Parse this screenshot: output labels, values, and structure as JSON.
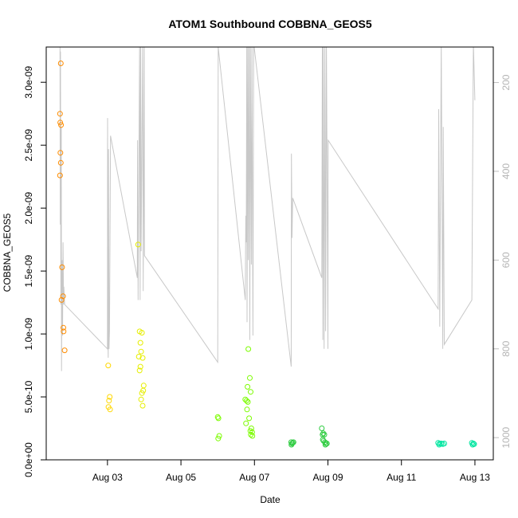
{
  "chart_data": {
    "type": "scatter",
    "title": "ATOM1 Southbound COBBNA_GEOS5",
    "xlabel": "Date",
    "ylabel": "COBBNA_GEOS5",
    "xlim": [
      "2016-08-01T08:00",
      "2016-08-13T12:00"
    ],
    "ylim": [
      0,
      3.28e-09
    ],
    "x_ticks": [
      {
        "x": "2016-08-03T00:00",
        "label": "Aug 03"
      },
      {
        "x": "2016-08-05T00:00",
        "label": "Aug 05"
      },
      {
        "x": "2016-08-07T00:00",
        "label": "Aug 07"
      },
      {
        "x": "2016-08-09T00:00",
        "label": "Aug 09"
      },
      {
        "x": "2016-08-11T00:00",
        "label": "Aug 11"
      },
      {
        "x": "2016-08-13T00:00",
        "label": "Aug 13"
      }
    ],
    "y_ticks": [
      {
        "y": 0,
        "label": "0.0e+00"
      },
      {
        "y": 5e-10,
        "label": "5.0e-10"
      },
      {
        "y": 1e-09,
        "label": "1.0e-09"
      },
      {
        "y": 1.5e-09,
        "label": "1.5e-09"
      },
      {
        "y": 2e-09,
        "label": "2.0e-09"
      },
      {
        "y": 2.5e-09,
        "label": "2.5e-09"
      },
      {
        "y": 3e-09,
        "label": "3.0e-09"
      }
    ],
    "secondary_axis": {
      "side": "right",
      "reversed": true,
      "range": [
        120,
        1050
      ],
      "ticks": [
        {
          "y": 200,
          "label": "200"
        },
        {
          "y": 400,
          "label": "400"
        },
        {
          "y": 600,
          "label": "600"
        },
        {
          "y": 800,
          "label": "800"
        },
        {
          "y": 1000,
          "label": "1000"
        }
      ],
      "color": "#bebebe"
    },
    "grid": false,
    "legend": "none",
    "points": [
      {
        "x": "2016-08-01T17:30",
        "y": 3.15e-09,
        "color": "#ff8c00"
      },
      {
        "x": "2016-08-01T17:00",
        "y": 2.75e-09,
        "color": "#ff8c00"
      },
      {
        "x": "2016-08-01T17:10",
        "y": 2.68e-09,
        "color": "#ff8c00"
      },
      {
        "x": "2016-08-01T17:40",
        "y": 2.66e-09,
        "color": "#ff8c00"
      },
      {
        "x": "2016-08-01T17:15",
        "y": 2.44e-09,
        "color": "#ff8c00"
      },
      {
        "x": "2016-08-01T17:30",
        "y": 2.36e-09,
        "color": "#ff8c00"
      },
      {
        "x": "2016-08-01T17:00",
        "y": 2.26e-09,
        "color": "#ff8c00"
      },
      {
        "x": "2016-08-01T18:20",
        "y": 1.53e-09,
        "color": "#ff8c00"
      },
      {
        "x": "2016-08-01T19:00",
        "y": 1.3e-09,
        "color": "#ff8c00"
      },
      {
        "x": "2016-08-01T18:00",
        "y": 1.27e-09,
        "color": "#ff8c00"
      },
      {
        "x": "2016-08-01T19:10",
        "y": 1.05e-09,
        "color": "#ff8c00"
      },
      {
        "x": "2016-08-01T19:20",
        "y": 1.02e-09,
        "color": "#ff8c00"
      },
      {
        "x": "2016-08-01T20:00",
        "y": 8.7e-10,
        "color": "#ff8c00"
      },
      {
        "x": "2016-08-03T00:30",
        "y": 7.5e-10,
        "color": "#ffd700"
      },
      {
        "x": "2016-08-03T01:30",
        "y": 5e-10,
        "color": "#ffd700"
      },
      {
        "x": "2016-08-03T01:00",
        "y": 4.7e-10,
        "color": "#ffd700"
      },
      {
        "x": "2016-08-03T00:40",
        "y": 4.2e-10,
        "color": "#ffd700"
      },
      {
        "x": "2016-08-03T01:40",
        "y": 4e-10,
        "color": "#ffd700"
      },
      {
        "x": "2016-08-03T20:00",
        "y": 1.71e-09,
        "color": "#e6ee00"
      },
      {
        "x": "2016-08-03T21:00",
        "y": 1.02e-09,
        "color": "#e6ee00"
      },
      {
        "x": "2016-08-03T22:30",
        "y": 1.01e-09,
        "color": "#e6ee00"
      },
      {
        "x": "2016-08-03T21:30",
        "y": 9.3e-10,
        "color": "#e6ee00"
      },
      {
        "x": "2016-08-03T22:00",
        "y": 8.6e-10,
        "color": "#e6ee00"
      },
      {
        "x": "2016-08-03T20:30",
        "y": 8.2e-10,
        "color": "#e6ee00"
      },
      {
        "x": "2016-08-03T23:00",
        "y": 8.1e-10,
        "color": "#e6ee00"
      },
      {
        "x": "2016-08-03T21:30",
        "y": 7.4e-10,
        "color": "#e6ee00"
      },
      {
        "x": "2016-08-03T21:00",
        "y": 7.1e-10,
        "color": "#e6ee00"
      },
      {
        "x": "2016-08-03T23:40",
        "y": 5.9e-10,
        "color": "#e6ee00"
      },
      {
        "x": "2016-08-03T23:20",
        "y": 5.5e-10,
        "color": "#e6ee00"
      },
      {
        "x": "2016-08-03T22:30",
        "y": 5.3e-10,
        "color": "#e6ee00"
      },
      {
        "x": "2016-08-03T22:00",
        "y": 4.8e-10,
        "color": "#e6ee00"
      },
      {
        "x": "2016-08-03T23:00",
        "y": 4.3e-10,
        "color": "#e6ee00"
      },
      {
        "x": "2016-08-06T00:00",
        "y": 3.4e-10,
        "color": "#7cfc00"
      },
      {
        "x": "2016-08-06T00:30",
        "y": 3.3e-10,
        "color": "#7cfc00"
      },
      {
        "x": "2016-08-06T01:00",
        "y": 1.9e-10,
        "color": "#7cfc00"
      },
      {
        "x": "2016-08-06T00:20",
        "y": 1.7e-10,
        "color": "#7cfc00"
      },
      {
        "x": "2016-08-06T20:00",
        "y": 8.8e-10,
        "color": "#7cfc00"
      },
      {
        "x": "2016-08-06T21:00",
        "y": 6.5e-10,
        "color": "#7cfc00"
      },
      {
        "x": "2016-08-06T19:30",
        "y": 5.8e-10,
        "color": "#7cfc00"
      },
      {
        "x": "2016-08-06T21:30",
        "y": 5.4e-10,
        "color": "#7cfc00"
      },
      {
        "x": "2016-08-06T18:00",
        "y": 4.8e-10,
        "color": "#7cfc00"
      },
      {
        "x": "2016-08-06T18:50",
        "y": 4.7e-10,
        "color": "#7cfc00"
      },
      {
        "x": "2016-08-06T19:40",
        "y": 4.6e-10,
        "color": "#7cfc00"
      },
      {
        "x": "2016-08-06T19:10",
        "y": 4e-10,
        "color": "#7cfc00"
      },
      {
        "x": "2016-08-06T20:30",
        "y": 3.3e-10,
        "color": "#7cfc00"
      },
      {
        "x": "2016-08-06T18:30",
        "y": 2.9e-10,
        "color": "#7cfc00"
      },
      {
        "x": "2016-08-06T22:00",
        "y": 2.5e-10,
        "color": "#7cfc00"
      },
      {
        "x": "2016-08-06T21:20",
        "y": 2.3e-10,
        "color": "#7cfc00"
      },
      {
        "x": "2016-08-06T22:30",
        "y": 2.2e-10,
        "color": "#7cfc00"
      },
      {
        "x": "2016-08-06T21:40",
        "y": 2e-10,
        "color": "#7cfc00"
      },
      {
        "x": "2016-08-06T22:40",
        "y": 1.9e-10,
        "color": "#7cfc00"
      },
      {
        "x": "2016-08-08T00:00",
        "y": 1.4e-10,
        "color": "#2ecc40"
      },
      {
        "x": "2016-08-08T01:00",
        "y": 1.35e-10,
        "color": "#2ecc40"
      },
      {
        "x": "2016-08-08T00:30",
        "y": 1.3e-10,
        "color": "#2ecc40"
      },
      {
        "x": "2016-08-08T01:30",
        "y": 1.4e-10,
        "color": "#2ecc40"
      },
      {
        "x": "2016-08-08T00:10",
        "y": 1.2e-10,
        "color": "#2ecc40"
      },
      {
        "x": "2016-08-08T20:00",
        "y": 2.5e-10,
        "color": "#2ecc40"
      },
      {
        "x": "2016-08-08T21:00",
        "y": 2.1e-10,
        "color": "#2ecc40"
      },
      {
        "x": "2016-08-08T20:30",
        "y": 2e-10,
        "color": "#2ecc40"
      },
      {
        "x": "2016-08-08T21:40",
        "y": 2e-10,
        "color": "#2ecc40"
      },
      {
        "x": "2016-08-08T20:40",
        "y": 1.6e-10,
        "color": "#2ecc40"
      },
      {
        "x": "2016-08-08T21:10",
        "y": 1.5e-10,
        "color": "#2ecc40"
      },
      {
        "x": "2016-08-08T22:00",
        "y": 1.4e-10,
        "color": "#2ecc40"
      },
      {
        "x": "2016-08-08T22:40",
        "y": 1.3e-10,
        "color": "#2ecc40"
      },
      {
        "x": "2016-08-08T23:20",
        "y": 1.3e-10,
        "color": "#2ecc40"
      },
      {
        "x": "2016-08-08T22:20",
        "y": 1.2e-10,
        "color": "#2ecc40"
      },
      {
        "x": "2016-08-12T00:00",
        "y": 1.35e-10,
        "color": "#00e6a0"
      },
      {
        "x": "2016-08-12T01:00",
        "y": 1.3e-10,
        "color": "#00e6a0"
      },
      {
        "x": "2016-08-12T02:00",
        "y": 1.3e-10,
        "color": "#00e6a0"
      },
      {
        "x": "2016-08-12T03:00",
        "y": 1.25e-10,
        "color": "#00e6a0"
      },
      {
        "x": "2016-08-12T04:00",
        "y": 1.3e-10,
        "color": "#00e6a0"
      },
      {
        "x": "2016-08-12T00:40",
        "y": 1.2e-10,
        "color": "#00e6a0"
      },
      {
        "x": "2016-08-12T22:00",
        "y": 1.35e-10,
        "color": "#00e6a0"
      },
      {
        "x": "2016-08-12T23:00",
        "y": 1.3e-10,
        "color": "#00e6a0"
      },
      {
        "x": "2016-08-12T23:30",
        "y": 1.25e-10,
        "color": "#00e6a0"
      },
      {
        "x": "2016-08-12T22:30",
        "y": 1.2e-10,
        "color": "#00e6a0"
      }
    ],
    "pressure_trace": {
      "color": "#c8c8c8",
      "points": [
        [
          "2016-08-01T17:00",
          120
        ],
        [
          "2016-08-01T17:10",
          520
        ],
        [
          "2016-08-01T17:20",
          130
        ],
        [
          "2016-08-01T17:35",
          700
        ],
        [
          "2016-08-01T17:50",
          300
        ],
        [
          "2016-08-01T18:00",
          850
        ],
        [
          "2016-08-01T18:20",
          600
        ],
        [
          "2016-08-01T18:40",
          770
        ],
        [
          "2016-08-01T19:00",
          560
        ],
        [
          "2016-08-01T19:20",
          700
        ],
        [
          "2016-08-01T19:30",
          660
        ],
        [
          "2016-08-01T20:00",
          700
        ],
        [
          "2016-08-03T00:00",
          800
        ],
        [
          "2016-08-03T00:05",
          280
        ],
        [
          "2016-08-03T00:20",
          780
        ],
        [
          "2016-08-03T00:30",
          820
        ],
        [
          "2016-08-03T00:40",
          350
        ],
        [
          "2016-08-03T01:00",
          800
        ],
        [
          "2016-08-03T01:20",
          760
        ],
        [
          "2016-08-03T02:00",
          320
        ],
        [
          "2016-08-03T19:30",
          640
        ],
        [
          "2016-08-03T19:40",
          330
        ],
        [
          "2016-08-03T20:00",
          690
        ],
        [
          "2016-08-03T21:00",
          110
        ],
        [
          "2016-08-03T21:20",
          690
        ],
        [
          "2016-08-03T21:40",
          110
        ],
        [
          "2016-08-03T22:00",
          580
        ],
        [
          "2016-08-03T23:00",
          110
        ],
        [
          "2016-08-03T23:20",
          670
        ],
        [
          "2016-08-04T00:00",
          110
        ],
        [
          "2016-08-04T00:10",
          590
        ],
        [
          "2016-08-06T00:00",
          830
        ],
        [
          "2016-08-06T00:10",
          480
        ],
        [
          "2016-08-06T00:20",
          120
        ],
        [
          "2016-08-06T18:00",
          690
        ],
        [
          "2016-08-06T18:20",
          500
        ],
        [
          "2016-08-06T18:40",
          560
        ],
        [
          "2016-08-06T19:00",
          110
        ],
        [
          "2016-08-06T19:10",
          740
        ],
        [
          "2016-08-06T19:40",
          110
        ],
        [
          "2016-08-06T20:00",
          600
        ],
        [
          "2016-08-06T20:30",
          110
        ],
        [
          "2016-08-06T21:00",
          780
        ],
        [
          "2016-08-06T21:20",
          110
        ],
        [
          "2016-08-06T22:00",
          610
        ],
        [
          "2016-08-06T22:20",
          110
        ],
        [
          "2016-08-06T23:00",
          770
        ],
        [
          "2016-08-06T23:30",
          110
        ],
        [
          "2016-08-08T00:00",
          840
        ],
        [
          "2016-08-08T00:10",
          360
        ],
        [
          "2016-08-08T00:30",
          550
        ],
        [
          "2016-08-08T01:00",
          460
        ],
        [
          "2016-08-08T20:00",
          640
        ],
        [
          "2016-08-08T20:20",
          110
        ],
        [
          "2016-08-08T20:40",
          780
        ],
        [
          "2016-08-08T21:00",
          110
        ],
        [
          "2016-08-08T21:30",
          800
        ],
        [
          "2016-08-08T22:00",
          110
        ],
        [
          "2016-08-08T22:30",
          760
        ],
        [
          "2016-08-08T23:00",
          110
        ],
        [
          "2016-08-09T00:00",
          800
        ],
        [
          "2016-08-09T00:10",
          330
        ],
        [
          "2016-08-12T00:00",
          710
        ],
        [
          "2016-08-12T00:20",
          260
        ],
        [
          "2016-08-12T01:00",
          750
        ],
        [
          "2016-08-12T02:00",
          110
        ],
        [
          "2016-08-12T03:00",
          800
        ],
        [
          "2016-08-12T03:20",
          300
        ],
        [
          "2016-08-12T04:00",
          790
        ],
        [
          "2016-08-12T22:00",
          690
        ],
        [
          "2016-08-12T23:00",
          110
        ],
        [
          "2016-08-13T00:00",
          240
        ]
      ]
    }
  }
}
